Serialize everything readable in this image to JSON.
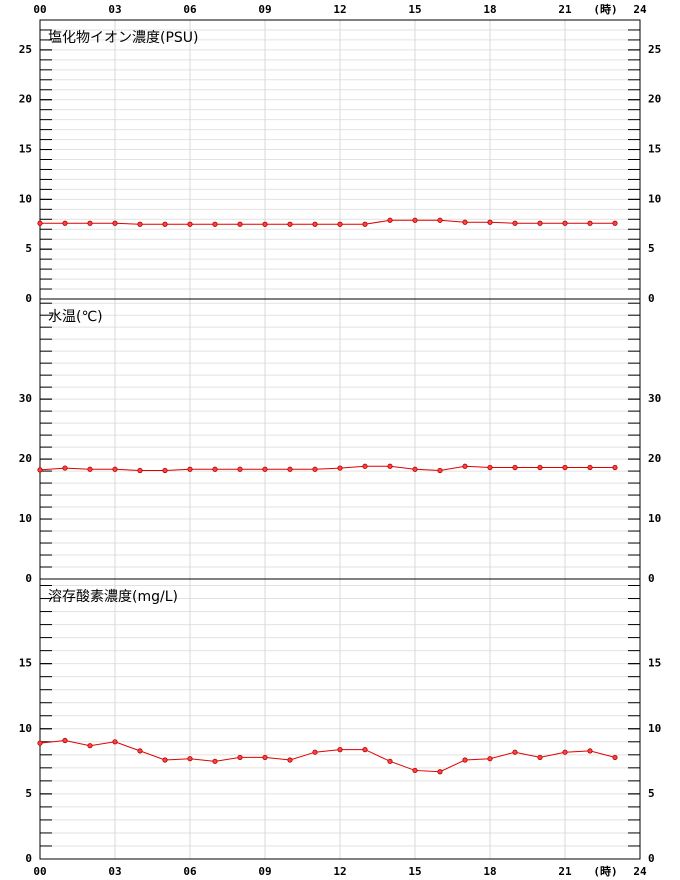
{
  "x_axis": {
    "xlim": [
      0,
      24
    ],
    "xticks": [
      {
        "value": 0,
        "label": "00"
      },
      {
        "value": 3,
        "label": "03"
      },
      {
        "value": 6,
        "label": "06"
      },
      {
        "value": 9,
        "label": "09"
      },
      12,
      15,
      18,
      {
        "value": 21,
        "label": "21"
      },
      24
    ],
    "unit": "(時)"
  },
  "chart_data": [
    {
      "type": "line",
      "title": "塩化物イオン濃度(PSU)",
      "color": "#e00000",
      "x": [
        0,
        1,
        2,
        3,
        4,
        5,
        6,
        7,
        8,
        9,
        10,
        11,
        12,
        13,
        14,
        15,
        16,
        17,
        18,
        19,
        20,
        21,
        22,
        23
      ],
      "values": [
        7.6,
        7.6,
        7.6,
        7.6,
        7.5,
        7.5,
        7.5,
        7.5,
        7.5,
        7.5,
        7.5,
        7.5,
        7.5,
        7.5,
        7.9,
        7.9,
        7.9,
        7.7,
        7.7,
        7.6,
        7.6,
        7.6,
        7.6,
        7.6
      ],
      "ylim": [
        0,
        28
      ],
      "yticks": [
        0,
        5,
        10,
        15,
        20,
        25
      ],
      "yminor": 1,
      "grid": true
    },
    {
      "type": "line",
      "title": "水温(℃)",
      "color": "#e00000",
      "x": [
        0,
        1,
        2,
        3,
        4,
        5,
        6,
        7,
        8,
        9,
        10,
        11,
        12,
        13,
        14,
        15,
        16,
        17,
        18,
        19,
        20,
        21,
        22,
        23
      ],
      "values": [
        18.2,
        18.5,
        18.3,
        18.3,
        18.1,
        18.1,
        18.3,
        18.3,
        18.3,
        18.3,
        18.3,
        18.3,
        18.5,
        18.8,
        18.8,
        18.3,
        18.1,
        18.8,
        18.6,
        18.6,
        18.6,
        18.6,
        18.6,
        18.6
      ],
      "ylim": [
        0,
        46.7
      ],
      "yticks": [
        0,
        10,
        20,
        30
      ],
      "yminor": 2,
      "grid": true
    },
    {
      "type": "line",
      "title": "溶存酸素濃度(mg/L)",
      "color": "#e00000",
      "x": [
        0,
        1,
        2,
        3,
        4,
        5,
        6,
        7,
        8,
        9,
        10,
        11,
        12,
        13,
        14,
        15,
        16,
        17,
        18,
        19,
        20,
        21,
        22,
        23
      ],
      "values": [
        8.9,
        9.1,
        8.7,
        9.0,
        8.3,
        7.6,
        7.7,
        7.5,
        7.8,
        7.8,
        7.6,
        8.2,
        8.4,
        8.4,
        7.5,
        6.8,
        6.7,
        7.6,
        7.7,
        8.2,
        7.8,
        8.2,
        8.3,
        7.8
      ],
      "ylim": [
        0,
        21.5
      ],
      "yticks": [
        0,
        5,
        10,
        15
      ],
      "yminor": 1,
      "grid": true
    }
  ]
}
